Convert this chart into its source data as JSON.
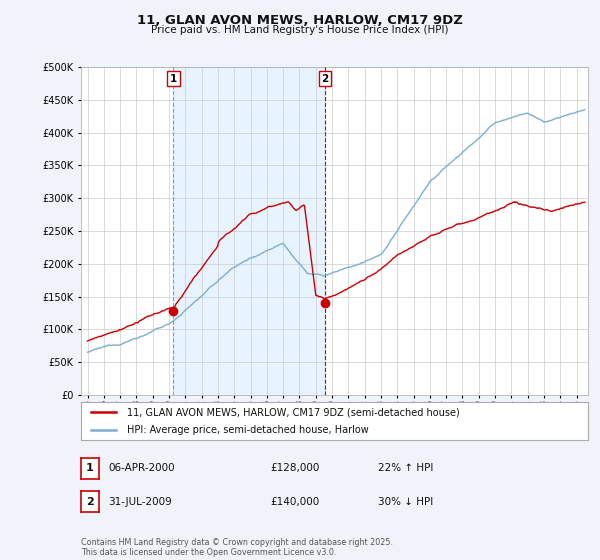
{
  "title_line1": "11, GLAN AVON MEWS, HARLOW, CM17 9DZ",
  "title_line2": "Price paid vs. HM Land Registry's House Price Index (HPI)",
  "property_label": "11, GLAN AVON MEWS, HARLOW, CM17 9DZ (semi-detached house)",
  "hpi_label": "HPI: Average price, semi-detached house, Harlow",
  "property_color": "#cc0000",
  "hpi_color": "#7ab0d4",
  "vline1_color": "#999999",
  "vline2_color": "#cc0000",
  "shade_color": "#ddeeff",
  "sale1_label": "1",
  "sale2_label": "2",
  "sale1_date": "06-APR-2000",
  "sale1_price": "£128,000",
  "sale1_hpi": "22% ↑ HPI",
  "sale2_date": "31-JUL-2009",
  "sale2_price": "£140,000",
  "sale2_hpi": "30% ↓ HPI",
  "footer": "Contains HM Land Registry data © Crown copyright and database right 2025.\nThis data is licensed under the Open Government Licence v3.0.",
  "ylim": [
    0,
    500000
  ],
  "yticks": [
    0,
    50000,
    100000,
    150000,
    200000,
    250000,
    300000,
    350000,
    400000,
    450000,
    500000
  ],
  "background_color": "#f0f4fa",
  "plot_bg_color": "#ffffff",
  "grid_color": "#cccccc",
  "sale1_year": 2000.27,
  "sale2_year": 2009.58,
  "sale1_price_val": 128000,
  "sale2_price_val": 140000
}
